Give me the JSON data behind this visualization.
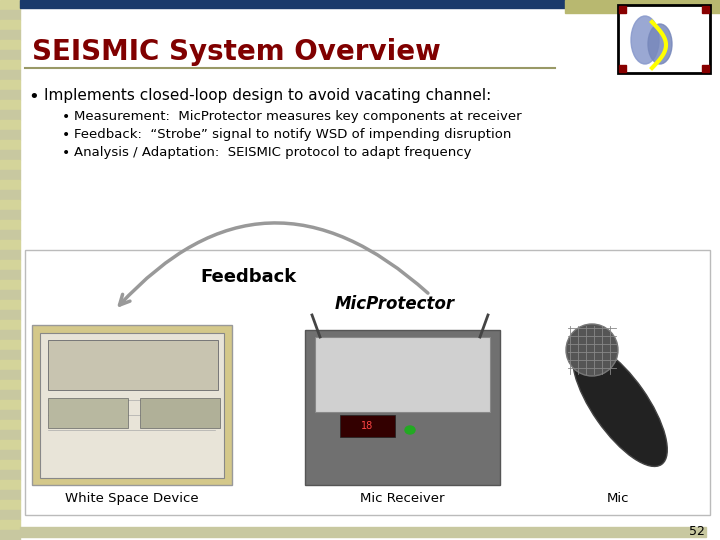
{
  "title": "SEISMIC System Overview",
  "title_color": "#800000",
  "title_fontsize": 20,
  "bg_color": "#ffffff",
  "left_bar_color": "#c8c8a0",
  "left_bar_stripe": "#d4d49a",
  "top_bar_color": "#1a3a6b",
  "top_bar2_color": "#b8b870",
  "bullet1": "Implements closed-loop design to avoid vacating channel:",
  "sub_bullets": [
    "Measurement:  MicProtector measures key components at receiver",
    "Feedback:  “Strobe” signal to notify WSD of impending disruption",
    "Analysis / Adaptation:  SEISMIC protocol to adapt frequency"
  ],
  "feedback_label": "Feedback",
  "micprotector_label": "MicProtector",
  "label_wsd": "White Space Device",
  "label_receiver": "Mic Receiver",
  "label_mic": "Mic",
  "page_number": "52"
}
